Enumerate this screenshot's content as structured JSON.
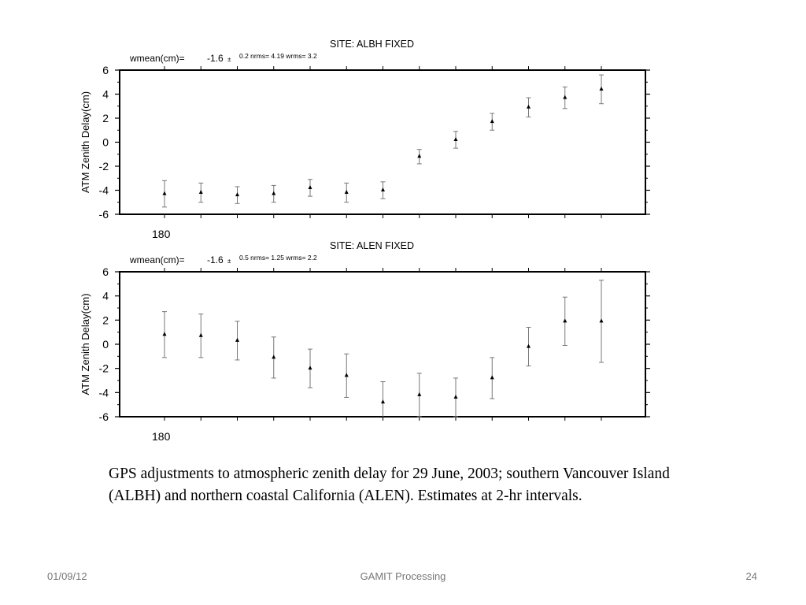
{
  "chart_data": [
    {
      "type": "scatter",
      "title": "SITE:    ALBH  FIXED",
      "stats": {
        "wmean_label": "wmean(cm)=",
        "wmean_value": "-1.6",
        "wmean_pm": "±",
        "small": "0.2  nrms=  4.19  wrms=   3.2"
      },
      "ylabel": "ATM Zenith Delay(cm)",
      "xtick_label": "180",
      "ylim": [
        -6,
        6
      ],
      "yticks": [
        6,
        4,
        2,
        0,
        -2,
        -4,
        -6
      ],
      "error_bars": true,
      "series": [
        {
          "x": [
            0,
            1,
            2,
            3,
            4,
            5,
            6,
            7,
            8,
            9,
            10,
            11,
            12
          ],
          "y": [
            -4.3,
            -4.2,
            -4.4,
            -4.3,
            -3.8,
            -4.2,
            -4.0,
            -1.2,
            0.2,
            1.7,
            2.9,
            3.7,
            4.4
          ],
          "err": [
            1.1,
            0.8,
            0.7,
            0.7,
            0.7,
            0.8,
            0.7,
            0.6,
            0.7,
            0.7,
            0.8,
            0.9,
            1.2
          ]
        }
      ]
    },
    {
      "type": "scatter",
      "title": "SITE:    ALEN  FIXED",
      "stats": {
        "wmean_label": "wmean(cm)=",
        "wmean_value": "-1.6",
        "wmean_pm": "±",
        "small": "0.5  nrms=  1.25  wrms=   2.2"
      },
      "ylabel": "ATM Zenith Delay(cm)",
      "xtick_label": "180",
      "ylim": [
        -6,
        6
      ],
      "yticks": [
        6,
        4,
        2,
        0,
        -2,
        -4,
        -6
      ],
      "error_bars": true,
      "series": [
        {
          "x": [
            0,
            1,
            2,
            3,
            4,
            5,
            6,
            7,
            8,
            9,
            10,
            11,
            12
          ],
          "y": [
            0.8,
            0.7,
            0.3,
            -1.1,
            -2.0,
            -2.6,
            -4.8,
            -4.2,
            -4.4,
            -2.8,
            -0.2,
            1.9,
            1.9
          ],
          "err": [
            1.9,
            1.8,
            1.6,
            1.7,
            1.6,
            1.8,
            1.7,
            1.8,
            1.6,
            1.7,
            1.6,
            2.0,
            3.4
          ]
        }
      ]
    }
  ],
  "caption": "GPS adjustments to atmospheric zenith delay for 29 June, 2003; southern Vancouver Island (ALBH) and northern coastal California (ALEN). Estimates at 2-hr intervals.",
  "footer": {
    "date": "01/09/12",
    "title": "GAMIT Processing",
    "page": "24"
  }
}
